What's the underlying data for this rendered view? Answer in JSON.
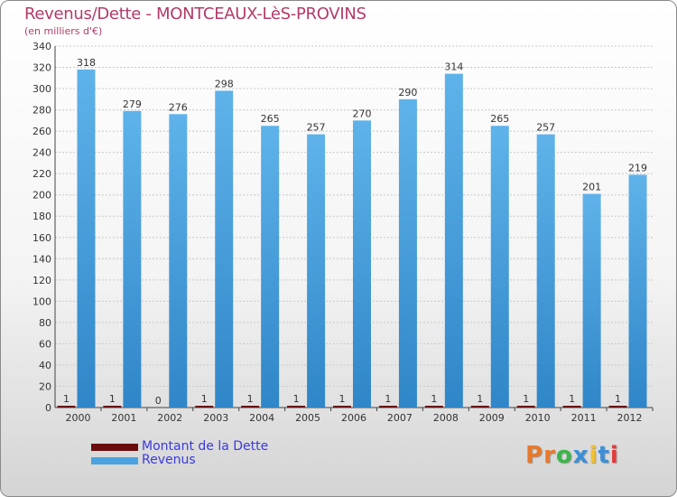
{
  "title": "Revenus/Dette - MONTCEAUX-LèS-PROVINS",
  "subtitle": "(en milliers d'€)",
  "logo_text": "Proxiti",
  "logo_colors": [
    "#e8792b",
    "#e8792b",
    "#3cb54a",
    "#3a8fd8",
    "#f2c12e",
    "#3a8fd8",
    "#e23b3b"
  ],
  "chart_data": {
    "type": "bar",
    "categories": [
      "2000",
      "2001",
      "2002",
      "2003",
      "2004",
      "2005",
      "2006",
      "2007",
      "2008",
      "2009",
      "2010",
      "2011",
      "2012"
    ],
    "series": [
      {
        "name": "Montant de la Dette",
        "color": "#6b0d0d",
        "values": [
          1,
          1,
          0,
          1,
          1,
          1,
          1,
          1,
          1,
          1,
          1,
          1,
          1
        ]
      },
      {
        "name": "Revenus",
        "color": "#4aa3e0",
        "values": [
          318,
          279,
          276,
          298,
          265,
          257,
          270,
          290,
          314,
          265,
          257,
          201,
          219
        ]
      }
    ],
    "ylim": [
      0,
      340
    ],
    "yticks": [
      0,
      20,
      40,
      60,
      80,
      100,
      120,
      140,
      160,
      180,
      200,
      220,
      240,
      260,
      280,
      300,
      320,
      340
    ],
    "grid": true,
    "legend_position": "bottom-left"
  }
}
